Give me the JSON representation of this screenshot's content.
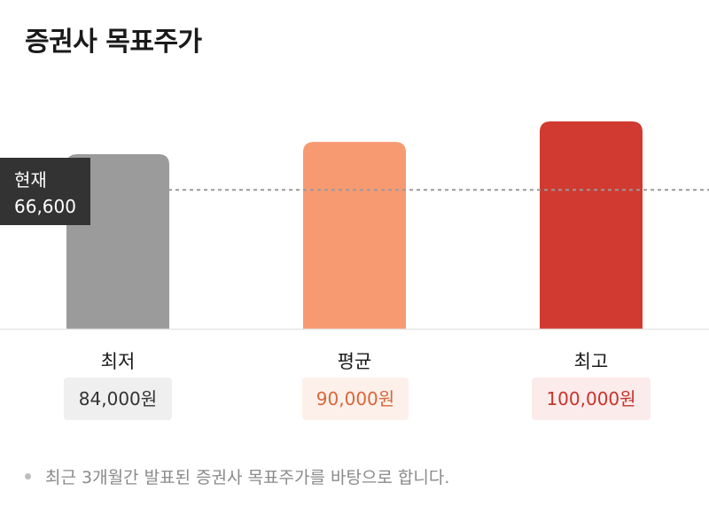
{
  "title": "증권사 목표주가",
  "current": {
    "label": "현재",
    "value_text": "66,600",
    "value": 66600
  },
  "note": "최근 3개월간 발표된 증권사 목표주가를 바탕으로 합니다.",
  "colors": {
    "low": "#9b9b9b",
    "avg": "#f79a72",
    "high": "#d03a30",
    "dashed": "#9a9a9a",
    "baseline": "#e6e6e6"
  },
  "chart_data": {
    "type": "bar",
    "categories": [
      "최저",
      "평균",
      "최고"
    ],
    "values": [
      84000,
      90000,
      100000
    ],
    "value_labels": [
      "84,000원",
      "90,000원",
      "100,000원"
    ],
    "reference_line": 66600,
    "title": "증권사 목표주가"
  }
}
